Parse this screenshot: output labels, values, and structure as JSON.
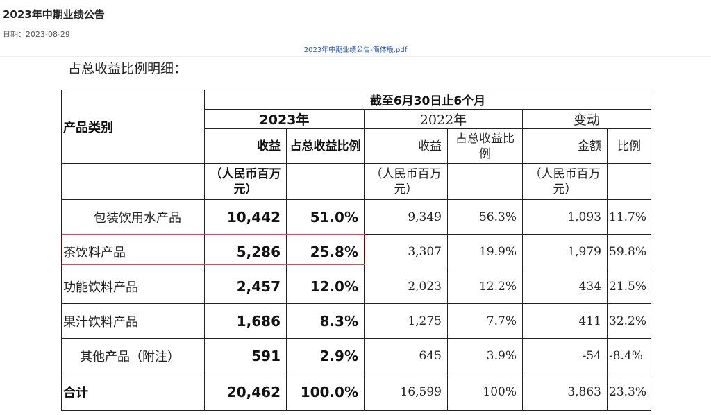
{
  "header": {
    "title": "2023年中期业绩公告",
    "date_label": "日期：",
    "date_value": "2023-08-29",
    "pdf_link": "2023年中期业绩公告-简体版.pdf"
  },
  "document": {
    "cut_heading": "占总收益比例明细：",
    "table": {
      "category_header": "产品类别",
      "period_header": "截至6月30日止6个月",
      "year_2023": "2023年",
      "year_2022": "2022年",
      "change_header": "变动",
      "col_revenue": "收益",
      "col_share": "占总收益比例",
      "col_amount": "金额",
      "col_ratio": "比例",
      "unit": "（人民币百万元）",
      "rows": [
        {
          "category": "包装饮用水产品",
          "rev_2023": "10,442",
          "share_2023": "51.0%",
          "rev_2022": "9,349",
          "share_2022": "56.3%",
          "change_amount": "1,093",
          "change_ratio": "11.7%"
        },
        {
          "category": "茶饮料产品",
          "rev_2023": "5,286",
          "share_2023": "25.8%",
          "rev_2022": "3,307",
          "share_2022": "19.9%",
          "change_amount": "1,979",
          "change_ratio": "59.8%"
        },
        {
          "category": "功能饮料产品",
          "rev_2023": "2,457",
          "share_2023": "12.0%",
          "rev_2022": "2,023",
          "share_2022": "12.2%",
          "change_amount": "434",
          "change_ratio": "21.5%"
        },
        {
          "category": "果汁饮料产品",
          "rev_2023": "1,686",
          "share_2023": "8.3%",
          "rev_2022": "1,275",
          "share_2022": "7.7%",
          "change_amount": "411",
          "change_ratio": "32.2%"
        },
        {
          "category": "其他产品（附注）",
          "rev_2023": "591",
          "share_2023": "2.9%",
          "rev_2022": "645",
          "share_2022": "3.9%",
          "change_amount": "-54",
          "change_ratio": "-8.4%"
        }
      ],
      "total": {
        "category": "合计",
        "rev_2023": "20,462",
        "share_2023": "100.0%",
        "rev_2022": "16,599",
        "share_2022": "100%",
        "change_amount": "3,863",
        "change_ratio": "23.3%"
      }
    }
  },
  "colors": {
    "highlight_border": "#e04848",
    "link": "#2255cc"
  }
}
